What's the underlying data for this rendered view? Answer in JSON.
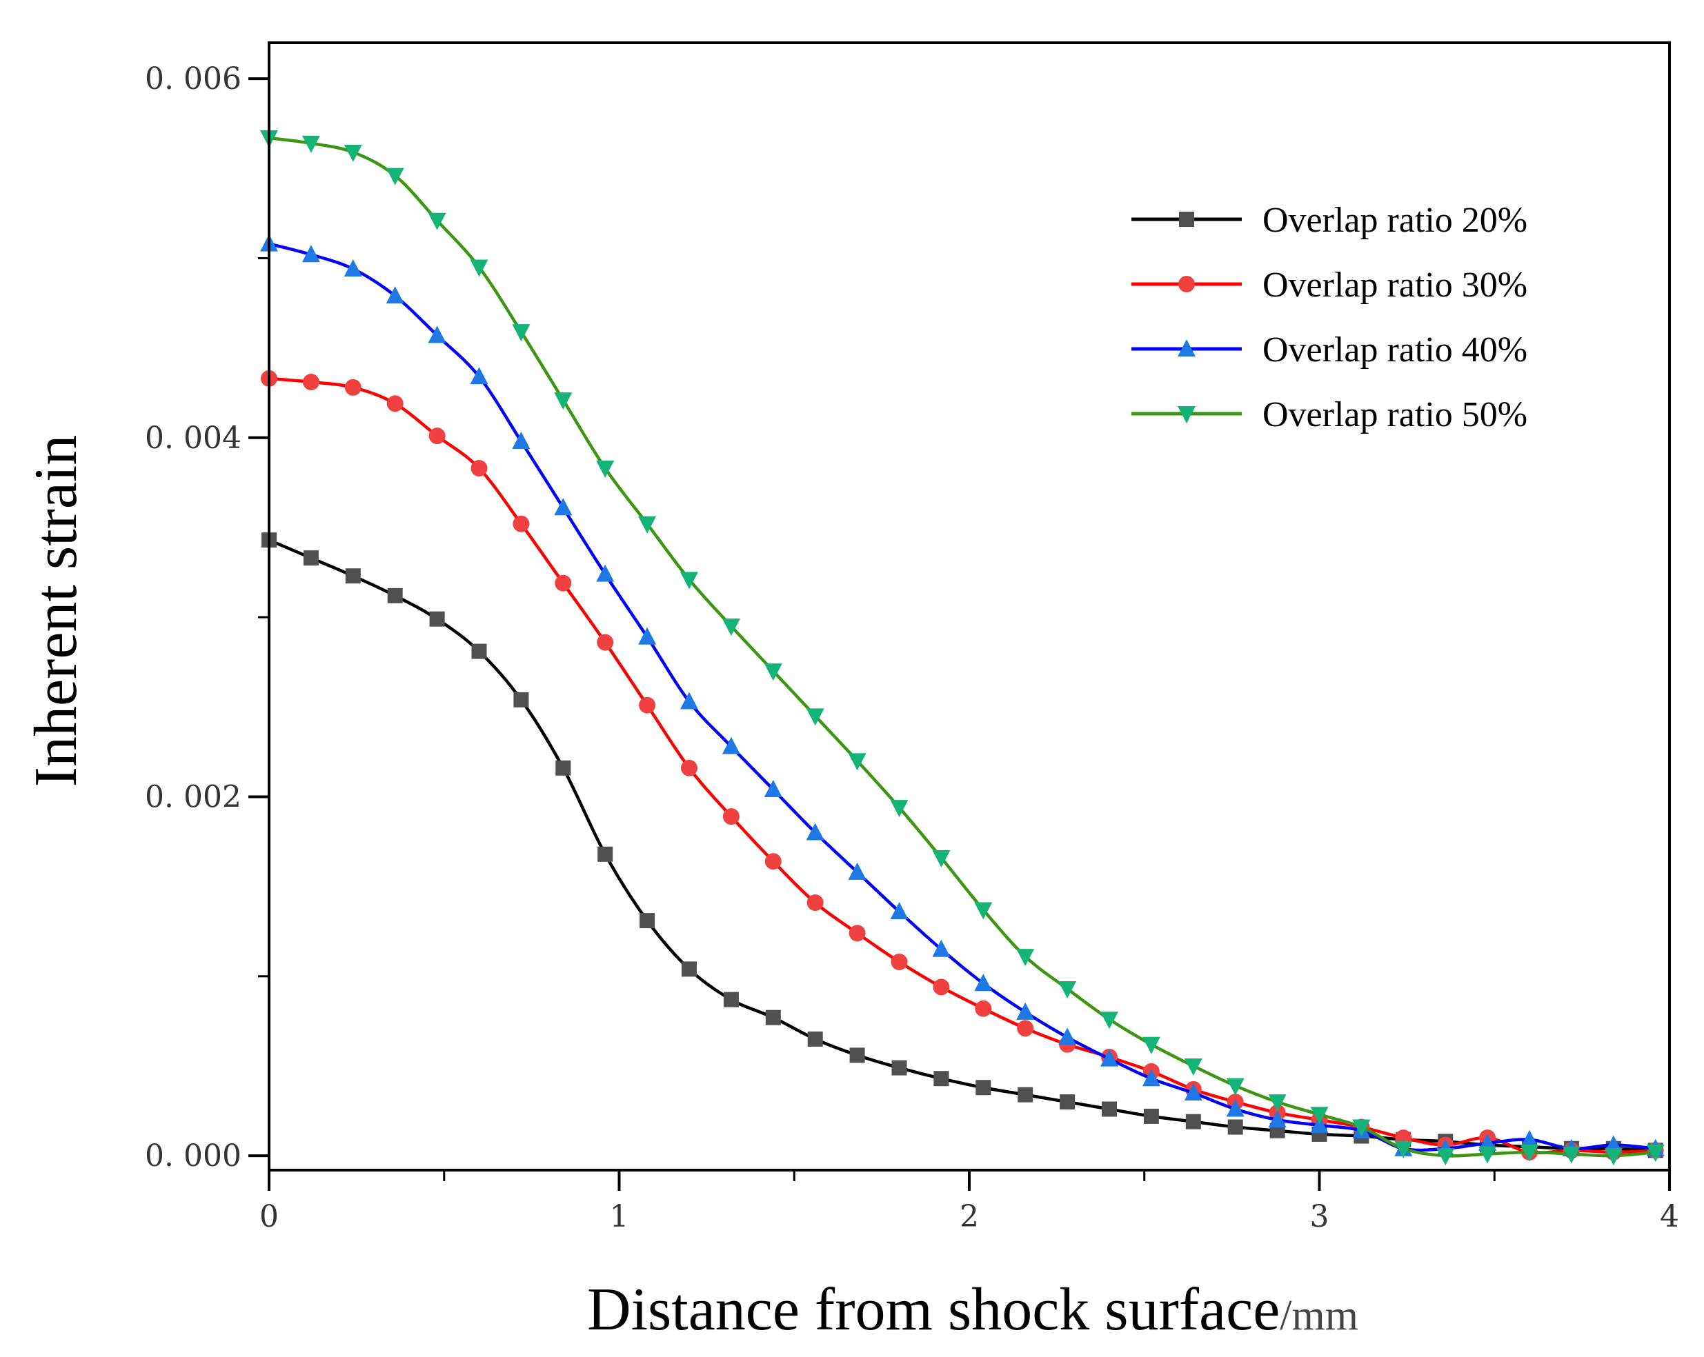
{
  "chart_data": {
    "type": "line",
    "xlabel": "Distance from shock surface",
    "xlabel_unit": "/mm",
    "ylabel": "Inherent strain",
    "xlim": [
      0,
      4
    ],
    "ylim": [
      -8e-05,
      0.0062
    ],
    "x_ticks": [
      "0",
      "1",
      "2",
      "3",
      "4"
    ],
    "y_ticks": [
      "0. 000",
      "0. 002",
      "0. 004",
      "0. 006"
    ],
    "grid": false,
    "legend_position": "top-right",
    "x": [
      0,
      0.12,
      0.24,
      0.36,
      0.48,
      0.6,
      0.72,
      0.84,
      0.96,
      1.08,
      1.2,
      1.32,
      1.44,
      1.56,
      1.68,
      1.8,
      1.92,
      2.04,
      2.16,
      2.28,
      2.4,
      2.52,
      2.64,
      2.76,
      2.88,
      3.0,
      3.12,
      3.24,
      3.36,
      3.48,
      3.6,
      3.72,
      3.84,
      3.96
    ],
    "series": [
      {
        "name": "Overlap ratio 20%",
        "color": "#000000",
        "marker_color": "#505050",
        "marker": "square",
        "values": [
          0.00343,
          0.00333,
          0.00323,
          0.00312,
          0.00299,
          0.00281,
          0.00254,
          0.00216,
          0.00168,
          0.00131,
          0.00104,
          0.00087,
          0.00077,
          0.00065,
          0.00056,
          0.00049,
          0.00043,
          0.00038,
          0.00034,
          0.0003,
          0.00026,
          0.00022,
          0.00019,
          0.00016,
          0.00014,
          0.00012,
          0.00011,
          9e-05,
          8e-05,
          6e-05,
          5e-05,
          4e-05,
          4e-05,
          3e-05
        ]
      },
      {
        "name": "Overlap ratio 30%",
        "color": "#ff0000",
        "marker_color": "#f04040",
        "marker": "circle",
        "values": [
          0.00433,
          0.00431,
          0.00428,
          0.00419,
          0.00401,
          0.00383,
          0.00352,
          0.00319,
          0.00286,
          0.00251,
          0.00216,
          0.00189,
          0.00164,
          0.00141,
          0.00124,
          0.00108,
          0.00094,
          0.00082,
          0.00071,
          0.00062,
          0.00055,
          0.00047,
          0.00037,
          0.0003,
          0.00024,
          0.0002,
          0.00016,
          0.0001,
          6e-05,
          0.0001,
          2e-05,
          3e-05,
          2e-05,
          3e-05
        ]
      },
      {
        "name": "Overlap ratio 40%",
        "color": "#0000ff",
        "marker_color": "#1e78e6",
        "marker": "triangle-up",
        "values": [
          0.00508,
          0.00502,
          0.00494,
          0.00479,
          0.00457,
          0.00434,
          0.00398,
          0.00361,
          0.00324,
          0.00289,
          0.00253,
          0.00228,
          0.00204,
          0.0018,
          0.00158,
          0.00136,
          0.00115,
          0.00096,
          0.0008,
          0.00066,
          0.00054,
          0.00043,
          0.00035,
          0.00026,
          0.0002,
          0.00017,
          0.00014,
          4e-05,
          4e-05,
          7e-05,
          9e-05,
          4e-05,
          6e-05,
          4e-05
        ]
      },
      {
        "name": "Overlap ratio 50%",
        "color": "#3c9614",
        "marker_color": "#14b478",
        "marker": "triangle-down",
        "values": [
          0.00567,
          0.00564,
          0.00559,
          0.00546,
          0.00521,
          0.00495,
          0.00459,
          0.00421,
          0.00383,
          0.00352,
          0.00321,
          0.00295,
          0.0027,
          0.00245,
          0.0022,
          0.00194,
          0.00166,
          0.00137,
          0.00111,
          0.00093,
          0.00076,
          0.00062,
          0.0005,
          0.00039,
          0.0003,
          0.00023,
          0.00016,
          4e-05,
          0.0,
          1e-05,
          2e-05,
          1e-05,
          0.0,
          2e-05
        ]
      }
    ]
  }
}
